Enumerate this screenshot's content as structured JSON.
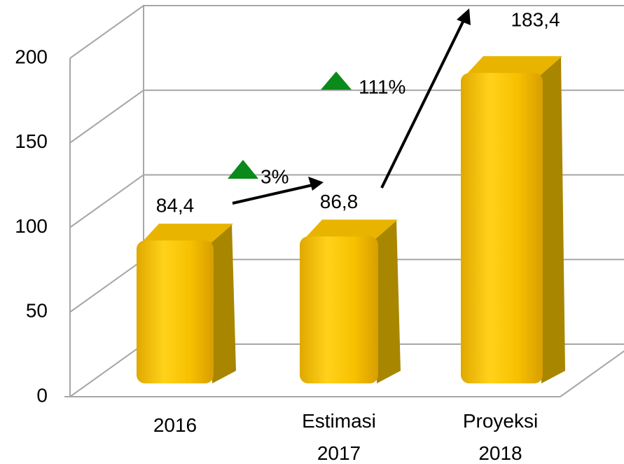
{
  "chart_data": {
    "type": "bar3d",
    "categories": [
      "2016",
      "Estimasi 2017",
      "Proyeksi 2018"
    ],
    "values": [
      84.4,
      86.8,
      183.4
    ],
    "value_labels": [
      "84,4",
      "86,8",
      "183,4"
    ],
    "color": "#f5c000",
    "ylim": [
      0,
      200
    ],
    "yticks": [
      0,
      50,
      100,
      150,
      200
    ],
    "grid": true,
    "annotations": [
      "3%",
      "111%"
    ]
  }
}
